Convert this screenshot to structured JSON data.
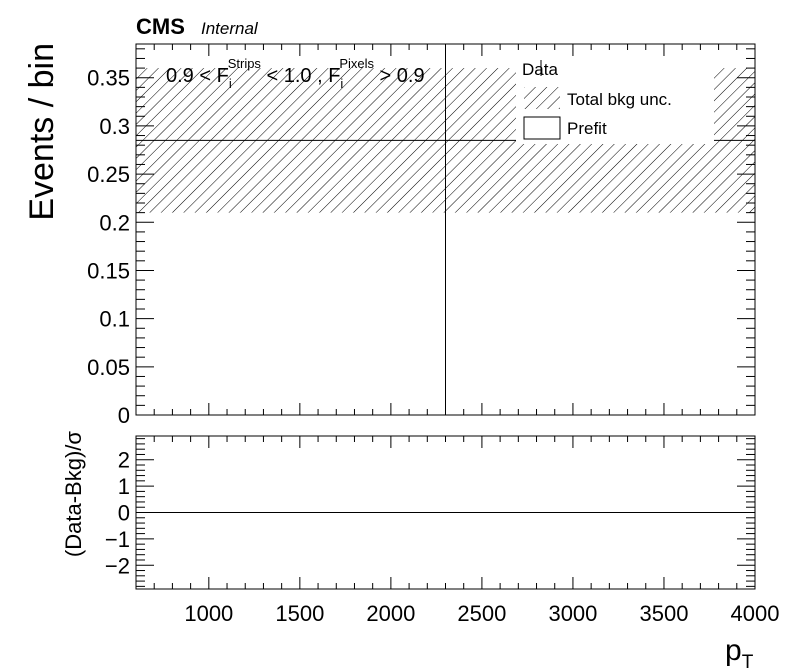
{
  "header": {
    "cms_label": "CMS",
    "internal_label": "Internal"
  },
  "annotation": {
    "cut_part1": "0.9 < F",
    "sub1": "i",
    "sup1": "Strips",
    "cut_part2": " < 1.0 , F",
    "sub2": "i",
    "sup2": "Pixels",
    "cut_part3": " > 0.9"
  },
  "legend": {
    "data_label": "Data",
    "unc_label": "Total bkg unc.",
    "prefit_label": "Prefit"
  },
  "colors": {
    "axis": "#000000",
    "hatch": "#000000",
    "background": "#ffffff"
  },
  "chart_data": [
    {
      "type": "area",
      "panel": "main",
      "ylabel": "Events / bin",
      "xlim": [
        600,
        4000
      ],
      "ylim": [
        0,
        0.385
      ],
      "y_ticks": [
        0,
        0.05,
        0.1,
        0.15,
        0.2,
        0.25,
        0.3,
        0.35
      ],
      "y_tick_labels": [
        "0",
        "0.05",
        "0.1",
        "0.15",
        "0.2",
        "0.25",
        "0.3",
        "0.35"
      ],
      "bins": [
        600,
        4000
      ],
      "prefit_values": [
        0.285
      ],
      "bkg_unc_low": [
        0.21
      ],
      "bkg_unc_high": [
        0.36
      ],
      "data_points": [
        {
          "x": 2300,
          "y": 0.0,
          "yerr_high": 0.385
        }
      ]
    },
    {
      "type": "line",
      "panel": "ratio",
      "ylabel": "(Data-Bkg)/σ",
      "xlabel": "p",
      "xlabel_sub": "T",
      "xlim": [
        600,
        4000
      ],
      "ylim": [
        -2.9,
        2.9
      ],
      "y_ticks": [
        -2,
        -1,
        0,
        1,
        2
      ],
      "y_tick_labels": [
        "−2",
        "−1",
        "0",
        "1",
        "2"
      ],
      "x_ticks": [
        1000,
        1500,
        2000,
        2500,
        3000,
        3500,
        4000
      ],
      "x_tick_labels": [
        "1000",
        "1500",
        "2000",
        "2500",
        "3000",
        "3500",
        "4000"
      ],
      "reference_line": 0
    }
  ]
}
